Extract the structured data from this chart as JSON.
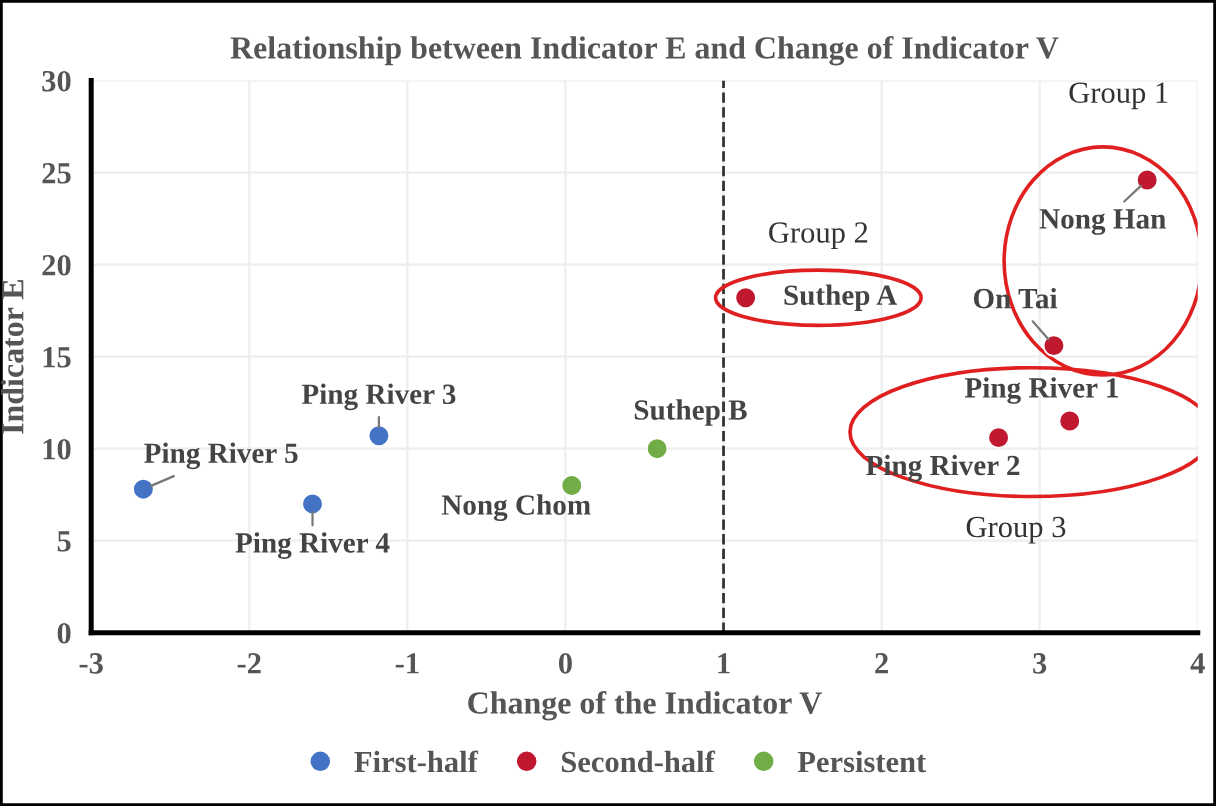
{
  "chart_data": {
    "type": "scatter",
    "title": "Relationship between Indicator E and Change of Indicator V",
    "xlabel": "Change of the Indicator V",
    "ylabel": "Indicator E",
    "xlim": [
      -3,
      4
    ],
    "xticks": [
      -3,
      -2,
      -1,
      0,
      1,
      2,
      3,
      4
    ],
    "ylim": [
      0,
      30
    ],
    "yticks": [
      0,
      5,
      10,
      15,
      20,
      25,
      30
    ],
    "grid": true,
    "legend": "bottom",
    "marker": "circle",
    "series": [
      {
        "name": "First-half",
        "color": "#4472c4",
        "x": [
          -2.67,
          -1.6,
          -1.18
        ],
        "values": [
          7.8,
          7.0,
          10.7
        ]
      },
      {
        "name": "Second-half",
        "color": "#c0182f",
        "x": [
          1.14,
          3.68,
          3.09,
          3.19,
          2.74
        ],
        "values": [
          18.2,
          24.6,
          15.6,
          11.5,
          10.6
        ]
      },
      {
        "name": "Persistent",
        "color": "#70ad47",
        "x": [
          0.04,
          0.58
        ],
        "values": [
          8.0,
          10.0
        ]
      }
    ],
    "ref_lines": [
      {
        "axis": "x",
        "value": 1,
        "color": "#333333",
        "line_style": "dashed"
      }
    ],
    "annotations": [
      {
        "text": "Ping River 5",
        "x": -2.67,
        "y": 7.8
      },
      {
        "text": "Ping River 4",
        "x": -1.6,
        "y": 7.0
      },
      {
        "text": "Ping River 3",
        "x": -1.18,
        "y": 10.7
      },
      {
        "text": "Nong Chom",
        "x": 0.04,
        "y": 8.0
      },
      {
        "text": "Suthep B",
        "x": 0.58,
        "y": 10.0
      },
      {
        "text": "Suthep A",
        "x": 1.14,
        "y": 18.2
      },
      {
        "text": "Nong Han",
        "x": 3.68,
        "y": 24.6
      },
      {
        "text": "On Tai",
        "x": 3.09,
        "y": 15.6
      },
      {
        "text": "Ping River 1",
        "x": 3.19,
        "y": 11.5
      },
      {
        "text": "Ping River 2",
        "x": 2.74,
        "y": 10.6
      },
      "Group 1",
      "Group 2",
      "Group 3"
    ]
  }
}
